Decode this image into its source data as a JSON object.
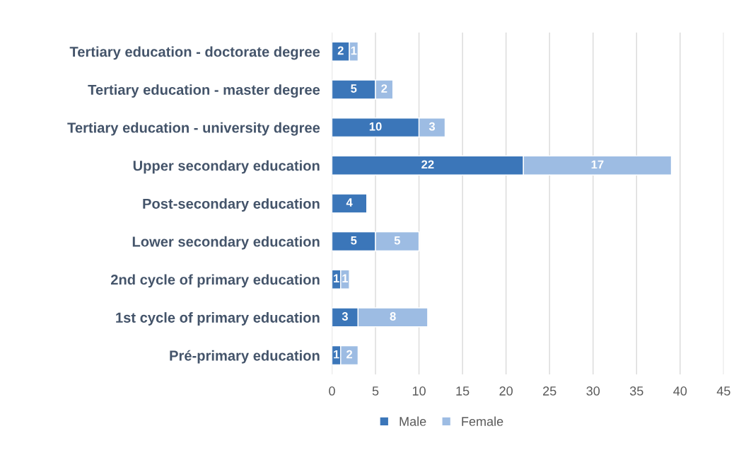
{
  "chart_data": {
    "type": "bar",
    "orientation": "horizontal",
    "stacked": true,
    "categories": [
      "Tertiary education - doctorate degree",
      "Tertiary education - master degree",
      "Tertiary education - university degree",
      "Upper secondary education",
      "Post-secondary education",
      "Lower secondary education",
      "2nd cycle of primary education",
      "1st cycle of primary education",
      "Pré-primary education"
    ],
    "series": [
      {
        "name": "Male",
        "color": "#3b76b9",
        "values": [
          2,
          5,
          10,
          22,
          4,
          5,
          1,
          3,
          1
        ]
      },
      {
        "name": "Female",
        "color": "#9dbce3",
        "values": [
          1,
          2,
          3,
          17,
          null,
          5,
          1,
          8,
          2
        ]
      }
    ],
    "xlim": [
      0,
      45
    ],
    "xticks": [
      0,
      5,
      10,
      15,
      20,
      25,
      30,
      35,
      40,
      45
    ],
    "grid": "x",
    "legend": "bottom",
    "data_labels": true
  }
}
